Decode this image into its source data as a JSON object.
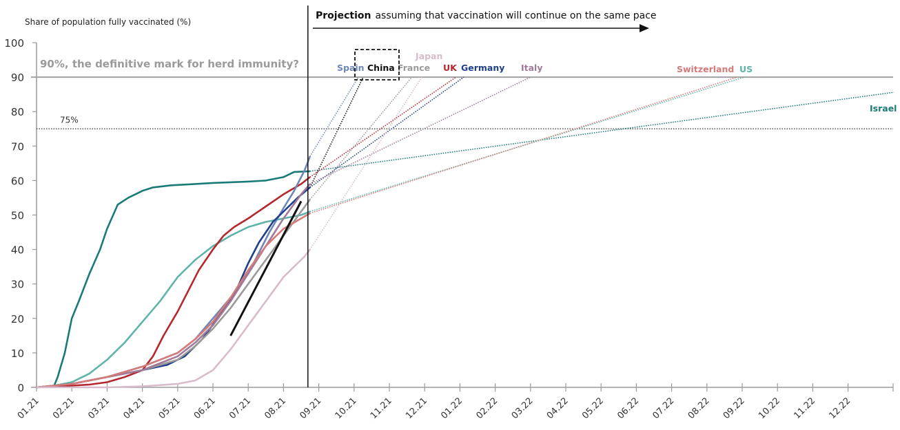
{
  "chart_data": {
    "type": "line",
    "ylabel": "Share of population fully vaccinated (%)",
    "xlabel": "",
    "ylim": [
      0,
      100
    ],
    "yticks": [
      0,
      10,
      20,
      30,
      40,
      50,
      60,
      70,
      80,
      90,
      100
    ],
    "x_unit": "months since 01.21",
    "xlim": [
      0,
      24
    ],
    "xticks": [
      "01.21",
      "02.21",
      "03.21",
      "04.21",
      "05.21",
      "06.21",
      "07.21",
      "08.21",
      "09.21",
      "10.21",
      "11.21",
      "12.21",
      "01.22",
      "02.22",
      "03.22",
      "04.22",
      "05.22",
      "06.22",
      "07.22",
      "08.22",
      "09.22",
      "10.22",
      "11.22",
      "12.22"
    ],
    "grid": false,
    "projection_start": 7.75,
    "projection_text_bold": "Projection",
    "projection_text": "assuming that vaccination will continue on the same pace",
    "reference_lines": [
      {
        "value": 90,
        "label": "90%, the definitive mark for herd immunity?",
        "style": "solid",
        "color": "#a0a0a0"
      },
      {
        "value": 75,
        "label": "75%",
        "style": "dotted",
        "color": "#555555"
      }
    ],
    "series": [
      {
        "name": "Israel",
        "color": "#1a7a78",
        "x": [
          0,
          0.5,
          0.6,
          0.8,
          1.0,
          1.2,
          1.5,
          1.8,
          2.0,
          2.3,
          2.6,
          3.0,
          3.3,
          3.8,
          4.5,
          5.0,
          5.5,
          6.0,
          6.5,
          7.0,
          7.3,
          7.75
        ],
        "values": [
          0,
          0.5,
          3,
          10,
          20,
          25,
          33,
          40,
          46,
          53,
          55,
          57,
          58,
          58.6,
          59,
          59.3,
          59.5,
          59.7,
          60,
          61,
          62.5,
          62.7
        ],
        "projection": {
          "x_end": 24.3,
          "value_end": 85.6
        }
      },
      {
        "name": "US",
        "color": "#5fb3a9",
        "x": [
          0,
          0.5,
          1.0,
          1.5,
          2.0,
          2.5,
          3.0,
          3.5,
          4.0,
          4.5,
          5.0,
          5.5,
          6.0,
          6.5,
          7.0,
          7.5,
          7.75
        ],
        "values": [
          0,
          0.5,
          1.5,
          4,
          8,
          13,
          19,
          25,
          32,
          37,
          41,
          44,
          46.5,
          48,
          49,
          50,
          51
        ],
        "projection": {
          "x_end": 20.06,
          "value_end": 90
        }
      },
      {
        "name": "UK",
        "color": "#b5272d",
        "x": [
          0,
          0.5,
          1.0,
          1.5,
          2.0,
          2.5,
          3.0,
          3.3,
          3.6,
          4.0,
          4.3,
          4.6,
          5.0,
          5.3,
          5.6,
          6.0,
          6.5,
          7.0,
          7.5,
          7.75
        ],
        "values": [
          0,
          0.2,
          0.5,
          0.8,
          1.5,
          3,
          5,
          9,
          15,
          22,
          28,
          34,
          40,
          44,
          46.5,
          49,
          52.5,
          56,
          59,
          61
        ],
        "projection": {
          "x_end": 11.89,
          "value_end": 90
        }
      },
      {
        "name": "Spain",
        "color": "#6f86b8",
        "x": [
          0,
          1.0,
          2.0,
          3.0,
          4.0,
          4.5,
          5.0,
          5.5,
          6.0,
          6.3,
          6.6,
          7.0,
          7.3,
          7.6,
          7.75
        ],
        "values": [
          0,
          1,
          3,
          6,
          10,
          14,
          20,
          26,
          33,
          39,
          45,
          52,
          57,
          63,
          67
        ],
        "projection": {
          "x_end": 9.12,
          "value_end": 90
        }
      },
      {
        "name": "Germany",
        "color": "#1f3f8a",
        "x": [
          0,
          1.0,
          2.0,
          3.0,
          3.7,
          4.2,
          4.7,
          5.2,
          5.7,
          6.0,
          6.3,
          6.7,
          7.0,
          7.4,
          7.75
        ],
        "values": [
          0,
          1,
          3,
          5,
          6.5,
          9,
          14,
          21,
          29,
          36,
          42,
          48,
          51,
          55,
          58
        ],
        "projection": {
          "x_end": 12.11,
          "value_end": 90
        }
      },
      {
        "name": "France",
        "color": "#9a9a9a",
        "x": [
          0,
          1.0,
          2.0,
          3.0,
          4.0,
          4.5,
          5.0,
          5.5,
          6.0,
          6.5,
          7.0,
          7.5,
          7.75
        ],
        "values": [
          0,
          1,
          3,
          5,
          8,
          12,
          17,
          23,
          30,
          37,
          44,
          51,
          54.5
        ],
        "projection": {
          "x_end": 10.64,
          "value_end": 90
        }
      },
      {
        "name": "Italy",
        "color": "#a07a98",
        "x": [
          0,
          1.0,
          2.0,
          3.0,
          4.0,
          4.5,
          5.0,
          5.5,
          6.0,
          6.5,
          7.0,
          7.5,
          7.75
        ],
        "values": [
          0,
          1,
          3,
          5,
          9,
          13,
          18,
          25,
          33,
          41,
          49,
          56,
          59
        ],
        "projection": {
          "x_end": 14.0,
          "value_end": 90
        }
      },
      {
        "name": "Switzerland",
        "color": "#d47a78",
        "x": [
          0,
          1.0,
          2.0,
          3.0,
          4.0,
          4.5,
          5.0,
          5.5,
          6.0,
          6.5,
          7.0,
          7.5,
          7.75
        ],
        "values": [
          0,
          1,
          3,
          6,
          10,
          14,
          19,
          26,
          34,
          41,
          46,
          49,
          50.5
        ],
        "projection": {
          "x_end": 19.86,
          "value_end": 90
        }
      },
      {
        "name": "Japan",
        "color": "#d8bccb",
        "x": [
          0,
          2.0,
          3.0,
          4.0,
          4.5,
          5.0,
          5.5,
          6.0,
          6.5,
          7.0,
          7.3,
          7.6,
          7.75
        ],
        "values": [
          0,
          0,
          0.3,
          1,
          2,
          5,
          11,
          18,
          25,
          32,
          35,
          38,
          40
        ],
        "projection": {
          "x_end": 10.92,
          "value_end": 90
        }
      },
      {
        "name": "China",
        "color": "#111111",
        "x": [
          5.5,
          7.5
        ],
        "values": [
          15,
          54
        ],
        "projection": {
          "x_start": 7.75,
          "value_start": 58,
          "x_end": 9.26,
          "value_end": 90
        }
      }
    ],
    "highlight_box": "China"
  }
}
